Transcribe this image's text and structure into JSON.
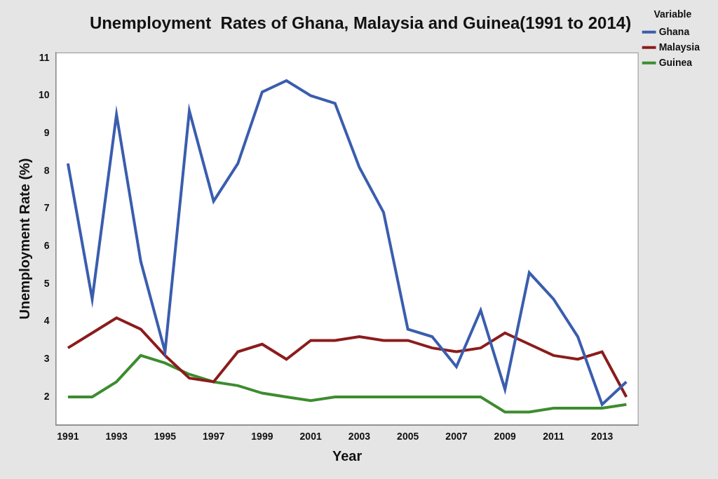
{
  "chart_data": {
    "type": "line",
    "title": "Unemployment  Rates of Ghana, Malaysia and Guinea(1991 to 2014)",
    "x_label": "Year",
    "y_label": "Unemployment Rate (%)",
    "legend_title": "Variable",
    "legend": "upper right",
    "grid": false,
    "categories": [
      "1991",
      null,
      "1993",
      null,
      "1995",
      null,
      "1997",
      null,
      "1999",
      null,
      "2001",
      null,
      "2003",
      null,
      "2005",
      null,
      "2007",
      null,
      "2009",
      null,
      "2011",
      null,
      "2013",
      null
    ],
    "series": [
      {
        "name": "Ghana",
        "color": "#3a5dae",
        "values": [
          8.2,
          4.6,
          9.5,
          5.6,
          3.2,
          9.6,
          7.2,
          8.2,
          10.1,
          10.4,
          10.0,
          9.8,
          8.1,
          6.9,
          3.8,
          3.6,
          2.8,
          4.3,
          2.2,
          5.3,
          4.6,
          3.6,
          1.8,
          2.4
        ]
      },
      {
        "name": "Malaysia",
        "color": "#8b1c1c",
        "values": [
          3.3,
          3.7,
          4.1,
          3.8,
          3.1,
          2.5,
          2.4,
          3.2,
          3.4,
          3.0,
          3.5,
          3.5,
          3.6,
          3.5,
          3.5,
          3.3,
          3.2,
          3.3,
          3.7,
          3.4,
          3.1,
          3.0,
          3.2,
          2.0
        ]
      },
      {
        "name": "Guinea",
        "color": "#3d8c2f",
        "values": [
          2.0,
          2.0,
          2.4,
          3.1,
          2.9,
          2.6,
          2.4,
          2.3,
          2.1,
          2.0,
          1.9,
          2.0,
          2.0,
          2.0,
          2.0,
          2.0,
          2.0,
          2.0,
          1.6,
          1.6,
          1.7,
          1.7,
          1.7,
          1.8
        ]
      }
    ],
    "ylim": [
      1.25,
      11.15
    ],
    "yticks": [
      2,
      3,
      4,
      5,
      6,
      7,
      8,
      9,
      10,
      11
    ]
  }
}
